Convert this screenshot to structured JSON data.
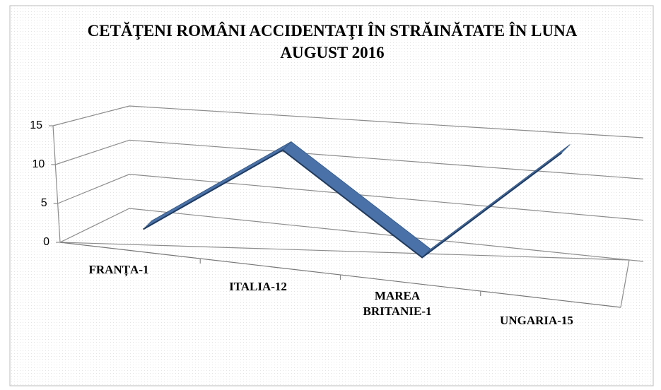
{
  "chart_data": {
    "type": "line",
    "title": "CETĂŢENI ROMÂNI ACCIDENTAŢI ÎN STRĂINĂTATE ÎN LUNA AUGUST 2016",
    "categories": [
      "FRANȚA-1",
      "ITALIA-12",
      "MAREA BRITANIE-1",
      "UNGARIA-15"
    ],
    "values": [
      1,
      12,
      1,
      15
    ],
    "color": "#4a72a8",
    "ylim": [
      0,
      15
    ],
    "yticks": [
      0,
      5,
      10,
      15
    ],
    "grid": true
  }
}
